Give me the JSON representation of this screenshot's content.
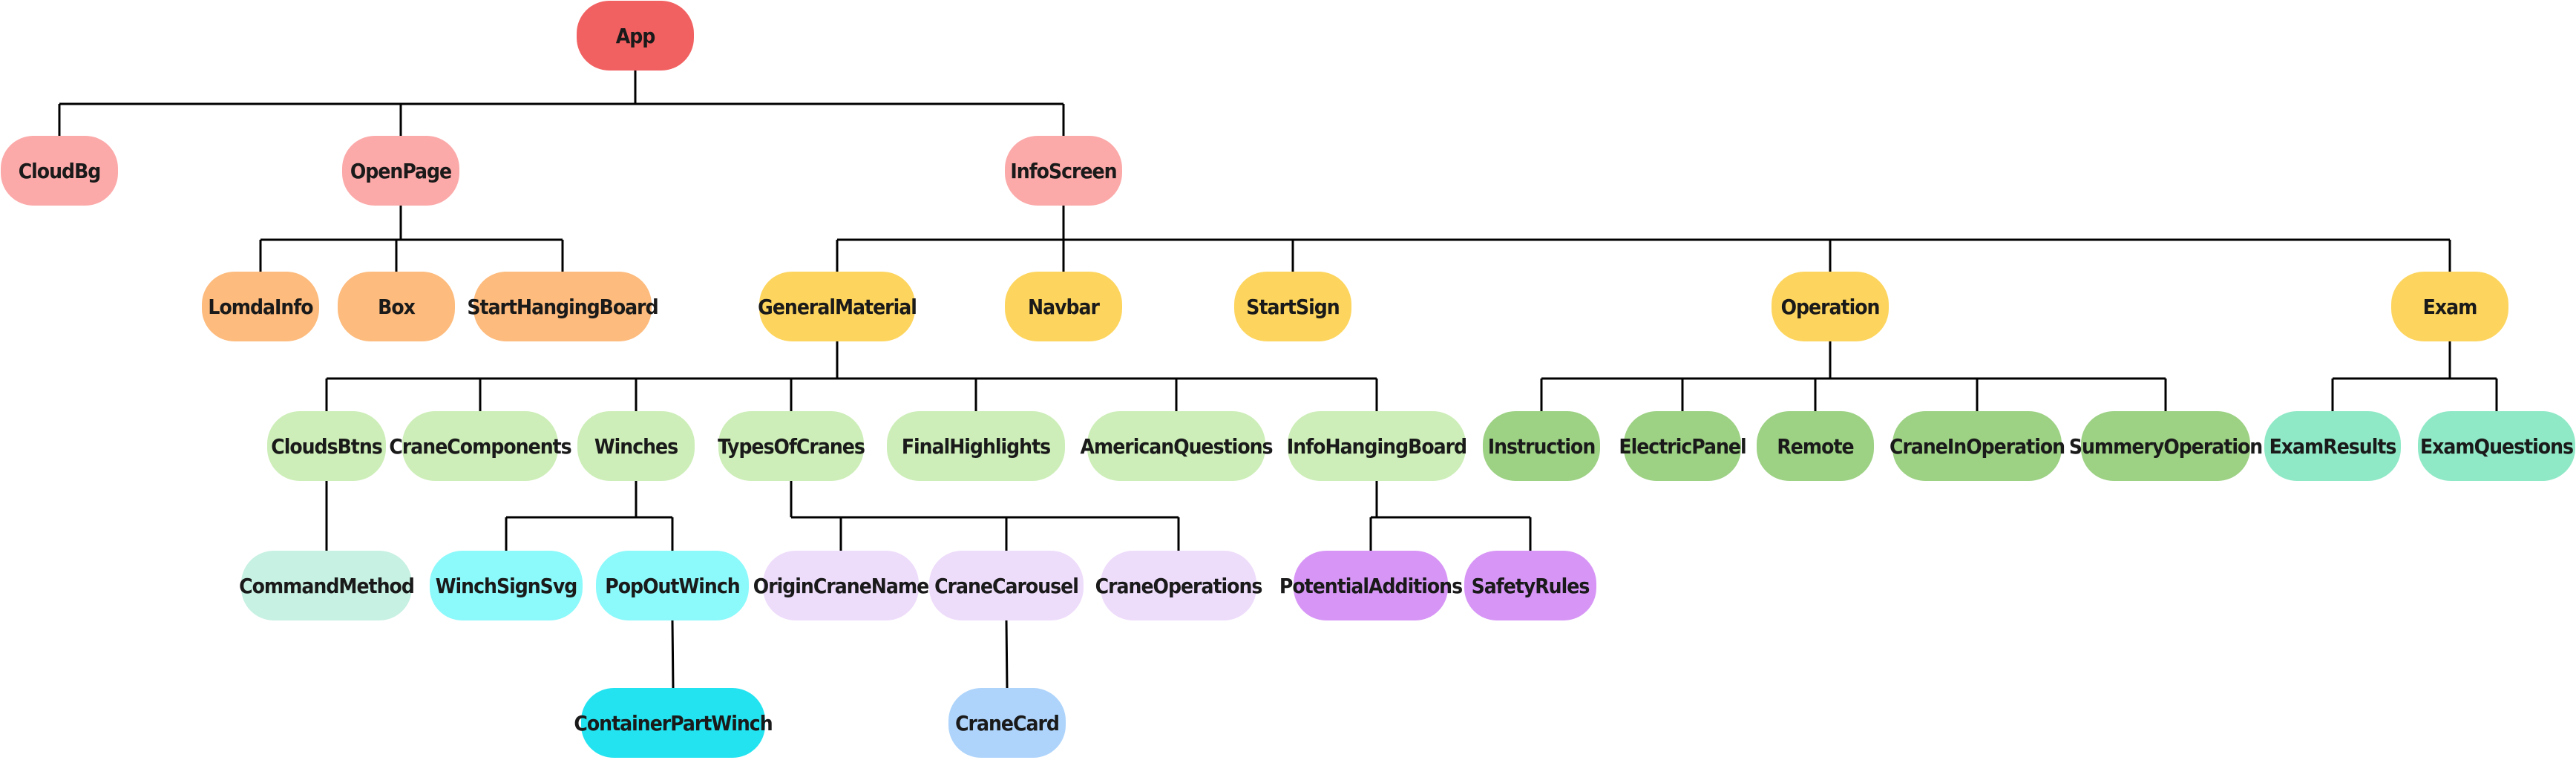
{
  "tree": {
    "palette": {
      "root": "#f26161",
      "level1": "#fca9a9",
      "level2-open": "#fdbb7d",
      "level2-info": "#fdd55e",
      "general-children": "#cdeeb8",
      "operation-children": "#9dd184",
      "exam-children": "#8fe9c7",
      "clouds-child": "#c7f1e2",
      "winch-children": "#8cf9fb",
      "winch-leaf": "#23e3f0",
      "crane-type-children": "#eedcfb",
      "crane-card": "#aed4fb",
      "hanging-board-children": "#d796f6",
      "edge-color": "#000000"
    },
    "nodes": {
      "app": {
        "label": "App"
      },
      "cloudbg": {
        "label": "CloudBg"
      },
      "openpage": {
        "label": "OpenPage"
      },
      "infoscreen": {
        "label": "InfoScreen"
      },
      "lomdainfo": {
        "label": "LomdaInfo"
      },
      "box": {
        "label": "Box"
      },
      "starthangingboard": {
        "label": "StartHangingBoard"
      },
      "generalmaterial": {
        "label": "GeneralMaterial"
      },
      "navbar": {
        "label": "Navbar"
      },
      "startsign": {
        "label": "StartSign"
      },
      "operation": {
        "label": "Operation"
      },
      "exam": {
        "label": "Exam"
      },
      "cloudsbtns": {
        "label": "CloudsBtns"
      },
      "cranecomponents": {
        "label": "CraneComponents"
      },
      "winches": {
        "label": "Winches"
      },
      "typesofcranes": {
        "label": "TypesOfCranes"
      },
      "finalhighlights": {
        "label": "FinalHighlights"
      },
      "americanquestions": {
        "label": "AmericanQuestions"
      },
      "infohangingboard": {
        "label": "InfoHangingBoard"
      },
      "instruction": {
        "label": "Instruction"
      },
      "electricpanel": {
        "label": "ElectricPanel"
      },
      "remote": {
        "label": "Remote"
      },
      "craneinoperation": {
        "label": "CraneInOperation"
      },
      "summeryoperation": {
        "label": "SummeryOperation"
      },
      "examresults": {
        "label": "ExamResults"
      },
      "examquestions": {
        "label": "ExamQuestions"
      },
      "commandmethod": {
        "label": "CommandMethod"
      },
      "winchsignsvg": {
        "label": "WinchSignSvg"
      },
      "popoutwinch": {
        "label": "PopOutWinch"
      },
      "origincranename": {
        "label": "OriginCraneName"
      },
      "cranecarousel": {
        "label": "CraneCarousel"
      },
      "craneoperations": {
        "label": "CraneOperations"
      },
      "potentialadditions": {
        "label": "PotentialAdditions"
      },
      "safetyrules": {
        "label": "SafetyRules"
      },
      "containerpartwinch": {
        "label": "ContainerPartWinch"
      },
      "cranecard": {
        "label": "CraneCard"
      }
    }
  }
}
